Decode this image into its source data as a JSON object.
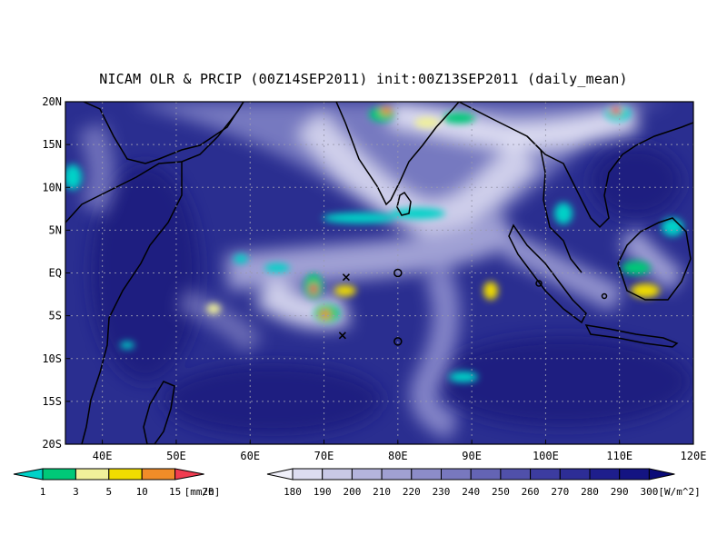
{
  "title": "NICAM OLR & PRCIP (00Z14SEP2011) init:00Z13SEP2011 (daily_mean)",
  "map": {
    "lat_labels": [
      "20N",
      "15N",
      "10N",
      "5N",
      "EQ",
      "5S",
      "10S",
      "15S",
      "20S"
    ],
    "lon_labels": [
      "40E",
      "50E",
      "60E",
      "70E",
      "80E",
      "90E",
      "100E",
      "110E",
      "120E"
    ],
    "lon_range": [
      35,
      120
    ],
    "lat_range": [
      -20,
      20
    ],
    "background_color": "#2a2e90",
    "markers": [
      {
        "type": "x",
        "lon": 73,
        "lat": -0.5
      },
      {
        "type": "x",
        "lon": 72.5,
        "lat": -7.3
      },
      {
        "type": "o",
        "lon": 80,
        "lat": 0
      },
      {
        "type": "o",
        "lon": 80,
        "lat": -8
      }
    ]
  },
  "precip_colorbar": {
    "labels": [
      "1",
      "3",
      "5",
      "10",
      "15",
      "20"
    ],
    "unit": "[mm/h]",
    "colors": [
      "#00d2c8",
      "#00c878",
      "#f0f09a",
      "#f0dc00",
      "#f08c28",
      "#f03c50"
    ]
  },
  "olr_colorbar": {
    "labels": [
      "180",
      "190",
      "200",
      "210",
      "220",
      "230",
      "240",
      "250",
      "260",
      "270",
      "280",
      "290",
      "300"
    ],
    "unit": "[W/m^2]",
    "colors": [
      "#f0f0fa",
      "#dcdcf0",
      "#c8c8e6",
      "#b4b4dc",
      "#a0a0d2",
      "#8c8cc8",
      "#7878be",
      "#6464b4",
      "#5050aa",
      "#3c3ca0",
      "#2d2d96",
      "#1e1e8c",
      "#141482",
      "#0a0a78"
    ]
  }
}
